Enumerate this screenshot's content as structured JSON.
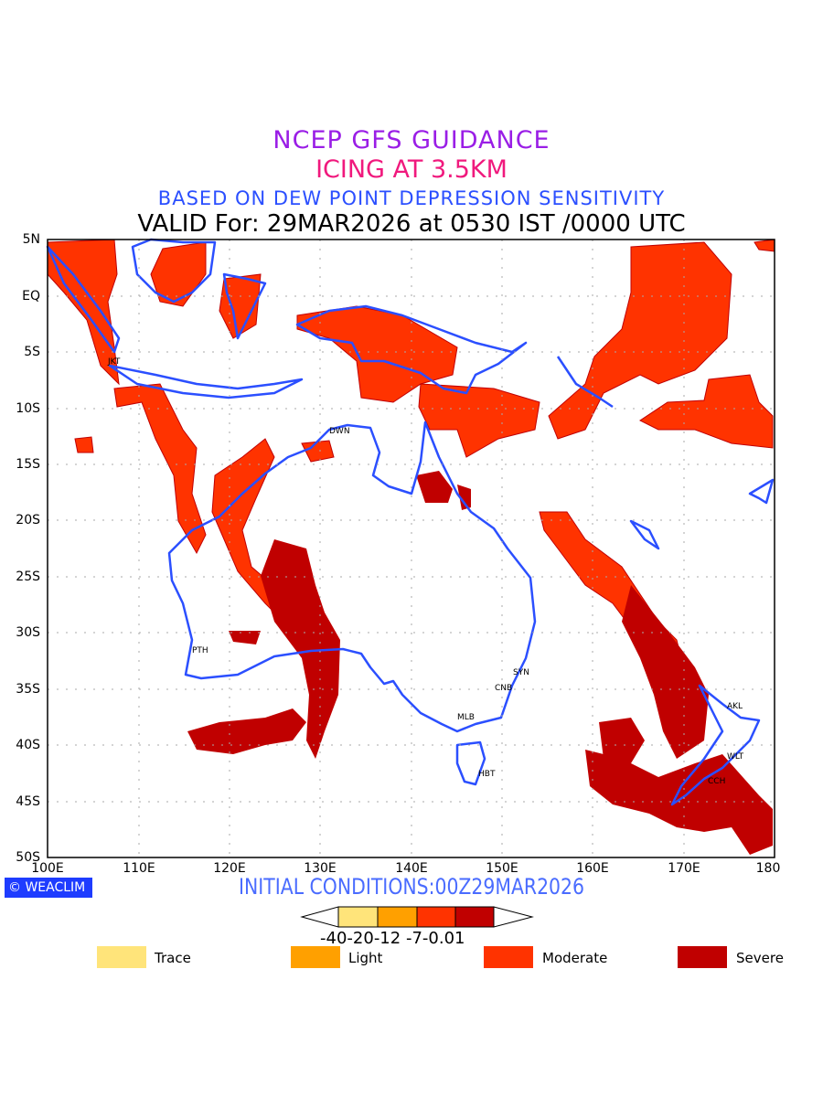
{
  "title": {
    "line1": "NCEP GFS GUIDANCE",
    "line2": "ICING AT 3.5KM",
    "line3": "BASED ON DEW POINT DEPRESSION SENSITIVITY",
    "line4": "VALID For: 29MAR2026 at 0530 IST /0000 UTC"
  },
  "axes": {
    "y_ticks": [
      "5N",
      "EQ",
      "5S",
      "10S",
      "15S",
      "20S",
      "25S",
      "30S",
      "35S",
      "40S",
      "45S",
      "50S"
    ],
    "x_ticks": [
      "100E",
      "110E",
      "120E",
      "130E",
      "140E",
      "150E",
      "160E",
      "170E",
      "180"
    ]
  },
  "stations": [
    "JKT",
    "DWN",
    "PTH",
    "SYN",
    "CNB",
    "MLB",
    "HBT",
    "AKL",
    "WLT",
    "CCH"
  ],
  "brand": "WEACLIM",
  "brand_icon": "copyright-icon",
  "initial_conditions": "INITIAL CONDITIONS:00Z29MAR2026",
  "colorbar": {
    "labels": [
      "-40",
      "-20",
      "-12",
      "-7",
      "-0.01"
    ],
    "colors": [
      "#ffe47a",
      "#ffa000",
      "#ff3300",
      "#c00000"
    ]
  },
  "legend": [
    {
      "label": "Trace",
      "color": "#ffe47a"
    },
    {
      "label": "Light",
      "color": "#ffa000"
    },
    {
      "label": "Moderate",
      "color": "#ff3300"
    },
    {
      "label": "Severe",
      "color": "#c00000"
    }
  ],
  "colors": {
    "coast": "#2b4fff",
    "moderate": "#ff3300",
    "severe": "#c00000"
  }
}
